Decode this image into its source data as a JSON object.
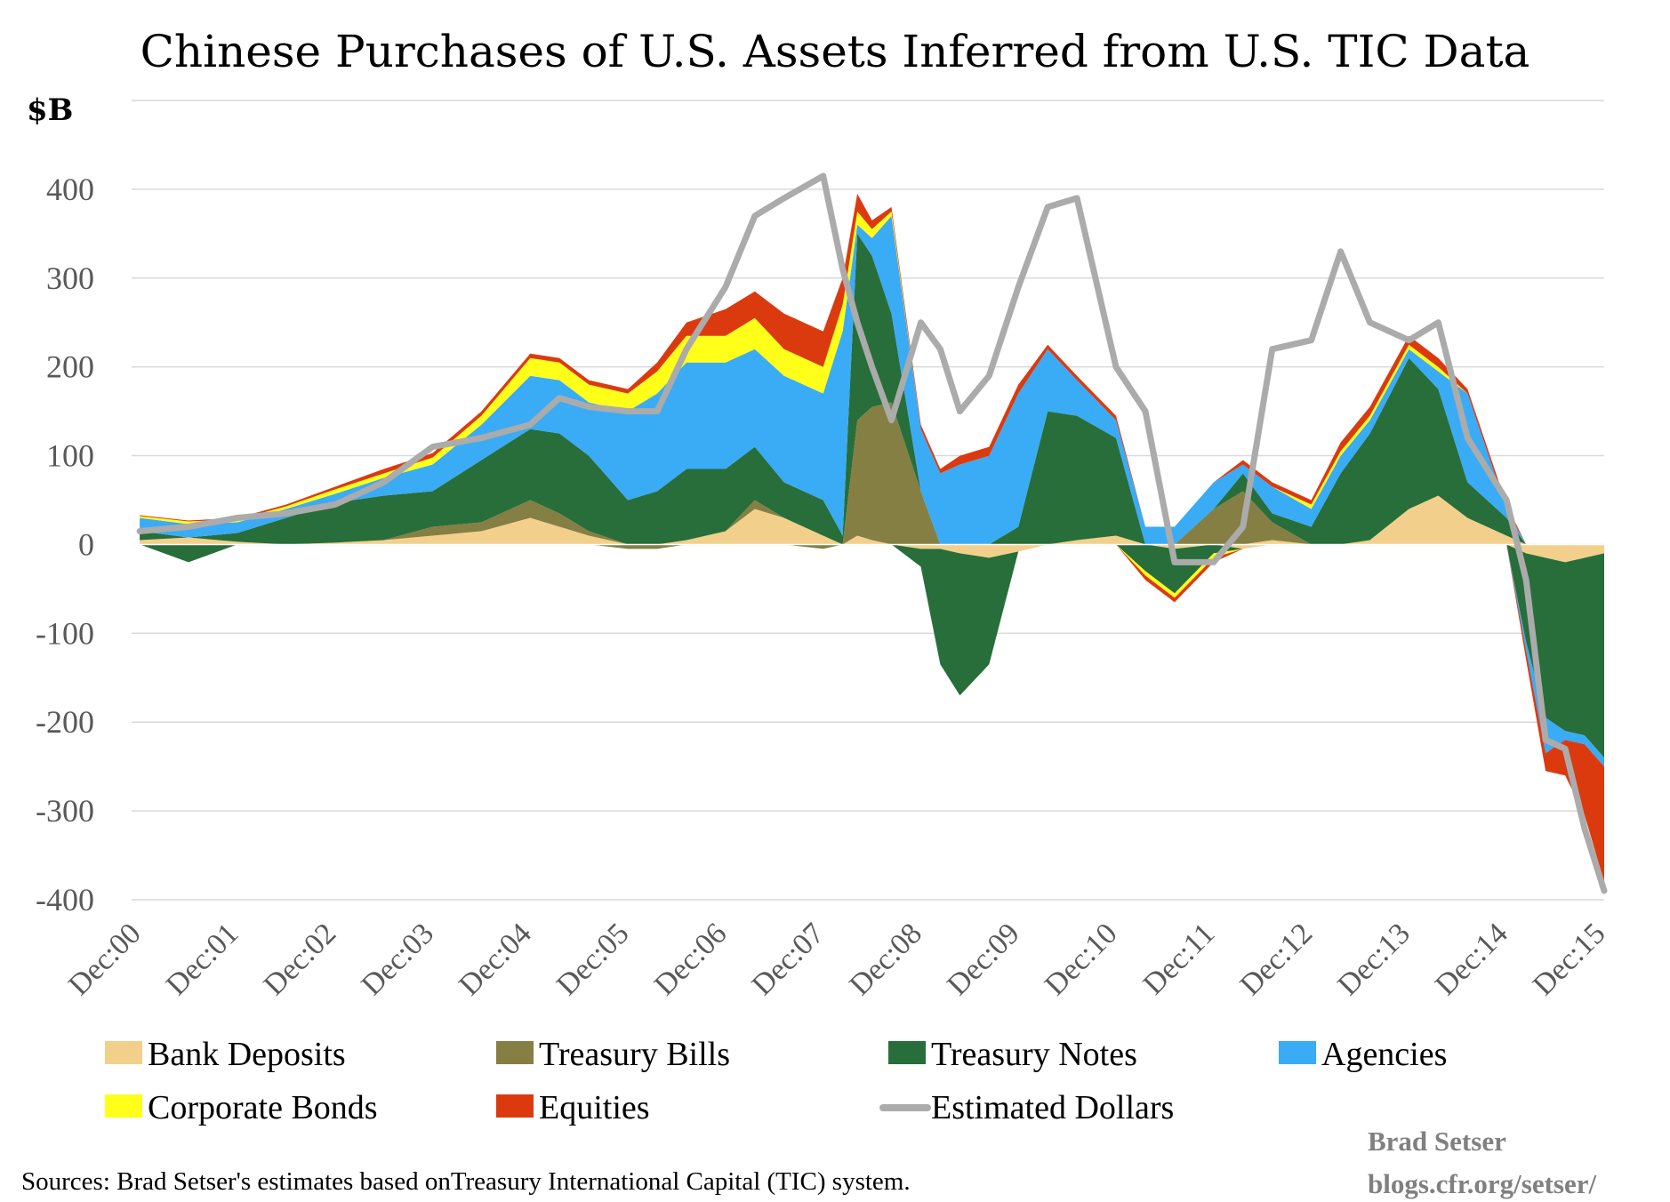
{
  "chart_data": {
    "type": "area",
    "title": "Chinese Purchases of U.S. Assets Inferred from U.S. TIC Data",
    "ylabel": "$B",
    "xlabel": "",
    "ylim": [
      -400,
      500
    ],
    "yticks": [
      400,
      300,
      200,
      100,
      0,
      -100,
      -200,
      -300,
      -400
    ],
    "ytick_labels": [
      "400",
      "300",
      "200",
      "100",
      "0",
      "-100",
      "-200",
      "-300",
      "-400"
    ],
    "xlim": [
      2000.917,
      2016.0
    ],
    "xticks": [
      {
        "label": "Dec:00",
        "x": 2000.917
      },
      {
        "label": "Dec:01",
        "x": 2001.917
      },
      {
        "label": "Dec:02",
        "x": 2002.917
      },
      {
        "label": "Dec:03",
        "x": 2003.917
      },
      {
        "label": "Dec:04",
        "x": 2004.917
      },
      {
        "label": "Dec:05",
        "x": 2005.917
      },
      {
        "label": "Dec:06",
        "x": 2006.917
      },
      {
        "label": "Dec:07",
        "x": 2007.917
      },
      {
        "label": "Dec:08",
        "x": 2008.917
      },
      {
        "label": "Dec:09",
        "x": 2009.917
      },
      {
        "label": "Dec:10",
        "x": 2010.917
      },
      {
        "label": "Dec:11",
        "x": 2011.917
      },
      {
        "label": "Dec:12",
        "x": 2012.917
      },
      {
        "label": "Dec:13",
        "x": 2013.917
      },
      {
        "label": "Dec:14",
        "x": 2014.917
      },
      {
        "label": "Dec:15",
        "x": 2015.917
      }
    ],
    "grid": true,
    "legend_position": "bottom",
    "stacking": "positive and negative values stacked separately",
    "x": [
      2001.0,
      2001.5,
      2002.0,
      2002.5,
      2003.0,
      2003.5,
      2004.0,
      2004.5,
      2005.0,
      2005.3,
      2005.6,
      2006.0,
      2006.3,
      2006.6,
      2007.0,
      2007.3,
      2007.6,
      2008.0,
      2008.2,
      2008.35,
      2008.5,
      2008.7,
      2009.0,
      2009.2,
      2009.4,
      2009.7,
      2010.0,
      2010.3,
      2010.6,
      2011.0,
      2011.3,
      2011.6,
      2012.0,
      2012.3,
      2012.6,
      2013.0,
      2013.3,
      2013.6,
      2014.0,
      2014.3,
      2014.6,
      2015.0,
      2015.2,
      2015.4,
      2015.6,
      2015.8,
      2016.0
    ],
    "series": [
      {
        "name": "Bank Deposits",
        "color": "#F2D08C",
        "values": [
          5,
          8,
          3,
          0,
          2,
          5,
          10,
          15,
          30,
          20,
          10,
          0,
          0,
          5,
          15,
          40,
          30,
          10,
          0,
          10,
          5,
          0,
          -5,
          -5,
          -10,
          -15,
          -8,
          0,
          5,
          10,
          0,
          -5,
          0,
          -5,
          5,
          0,
          0,
          5,
          40,
          55,
          30,
          10,
          -10,
          -15,
          -20,
          -15,
          -10
        ]
      },
      {
        "name": "Treasury Bills",
        "color": "#857F44",
        "values": [
          0,
          0,
          0,
          0,
          0,
          0,
          10,
          10,
          20,
          15,
          5,
          -5,
          -5,
          0,
          0,
          10,
          0,
          -5,
          0,
          130,
          150,
          160,
          60,
          0,
          0,
          0,
          0,
          0,
          0,
          0,
          0,
          0,
          40,
          60,
          20,
          0,
          0,
          0,
          0,
          0,
          0,
          0,
          0,
          0,
          0,
          0,
          0
        ]
      },
      {
        "name": "Treasury Notes",
        "color": "#276E3A",
        "values": [
          10,
          -20,
          10,
          30,
          45,
          50,
          40,
          70,
          80,
          90,
          85,
          50,
          60,
          80,
          70,
          60,
          40,
          40,
          10,
          210,
          170,
          100,
          -20,
          -130,
          -160,
          -120,
          20,
          150,
          140,
          110,
          -30,
          -50,
          -10,
          20,
          10,
          20,
          80,
          120,
          170,
          120,
          40,
          20,
          -100,
          -180,
          -190,
          -200,
          -230
        ]
      },
      {
        "name": "Agencies",
        "color": "#3AABF5",
        "values": [
          15,
          15,
          12,
          10,
          10,
          20,
          30,
          40,
          60,
          60,
          60,
          100,
          110,
          120,
          120,
          110,
          120,
          120,
          230,
          10,
          20,
          110,
          70,
          80,
          90,
          100,
          150,
          70,
          40,
          20,
          20,
          20,
          30,
          10,
          30,
          20,
          20,
          15,
          10,
          20,
          100,
          10,
          -10,
          -40,
          -10,
          -10,
          -10
        ]
      },
      {
        "name": "Corporate Bonds",
        "color": "#FFFF1A",
        "values": [
          2,
          3,
          3,
          3,
          5,
          5,
          8,
          10,
          20,
          20,
          20,
          20,
          25,
          30,
          30,
          35,
          30,
          30,
          30,
          15,
          10,
          5,
          0,
          0,
          0,
          0,
          0,
          0,
          0,
          0,
          -5,
          -5,
          -5,
          0,
          0,
          5,
          5,
          5,
          5,
          5,
          0,
          0,
          0,
          0,
          0,
          0,
          0
        ]
      },
      {
        "name": "Equities",
        "color": "#DB3A0F",
        "values": [
          1,
          1,
          2,
          2,
          3,
          5,
          5,
          5,
          5,
          5,
          5,
          5,
          10,
          15,
          30,
          30,
          40,
          40,
          30,
          20,
          10,
          5,
          5,
          5,
          10,
          10,
          10,
          5,
          5,
          5,
          -5,
          -5,
          -5,
          5,
          5,
          5,
          10,
          10,
          10,
          10,
          5,
          5,
          -10,
          -20,
          -40,
          -80,
          -130
        ]
      },
      {
        "name": "Estimated Dollars",
        "color": "#ABABAB",
        "type": "line",
        "values": [
          15,
          20,
          30,
          35,
          45,
          70,
          110,
          120,
          135,
          165,
          155,
          150,
          150,
          220,
          290,
          370,
          390,
          415,
          310,
          250,
          200,
          140,
          250,
          220,
          150,
          190,
          290,
          380,
          390,
          200,
          150,
          -20,
          -20,
          20,
          220,
          230,
          330,
          250,
          230,
          250,
          120,
          50,
          -40,
          -220,
          -230,
          -320,
          -390
        ]
      }
    ]
  },
  "title": "Chinese Purchases of U.S. Assets Inferred from U.S. TIC Data",
  "unit_label": "$B",
  "legend": [
    {
      "label": "Bank Deposits",
      "color": "#F2D08C",
      "kind": "swatch"
    },
    {
      "label": "Treasury Bills",
      "color": "#857F44",
      "kind": "swatch"
    },
    {
      "label": "Treasury Notes",
      "color": "#276E3A",
      "kind": "swatch"
    },
    {
      "label": "Agencies",
      "color": "#3AABF5",
      "kind": "swatch"
    },
    {
      "label": "Corporate Bonds",
      "color": "#FFFF1A",
      "kind": "swatch"
    },
    {
      "label": "Equities",
      "color": "#DB3A0F",
      "kind": "swatch"
    },
    {
      "label": "Estimated Dollars",
      "color": "#ABABAB",
      "kind": "line"
    }
  ],
  "source": "Sources: Brad Setser's estimates based onTreasury International Capital (TIC) system.",
  "credit": {
    "name": "Brad Setser",
    "url": "blogs.cfr.org/setser/"
  }
}
